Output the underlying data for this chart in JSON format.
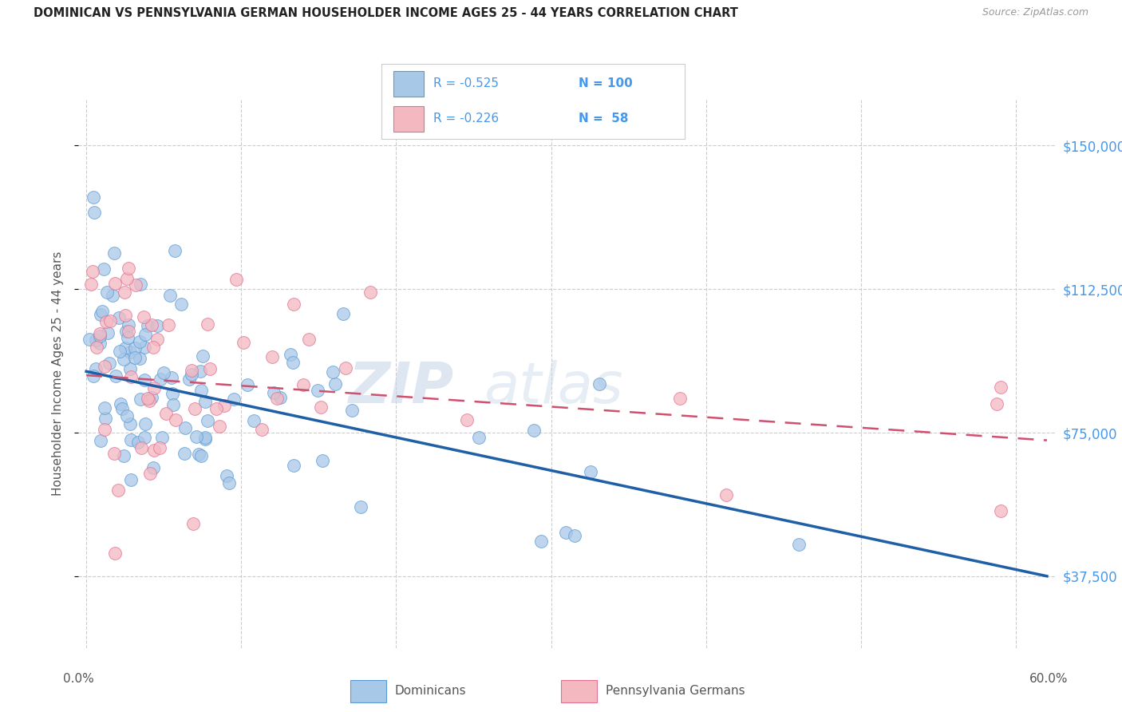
{
  "title": "DOMINICAN VS PENNSYLVANIA GERMAN HOUSEHOLDER INCOME AGES 25 - 44 YEARS CORRELATION CHART",
  "source": "Source: ZipAtlas.com",
  "ylabel": "Householder Income Ages 25 - 44 years",
  "ytick_labels": [
    "$37,500",
    "$75,000",
    "$112,500",
    "$150,000"
  ],
  "ytick_values": [
    37500,
    75000,
    112500,
    150000
  ],
  "ymin": 18750,
  "ymax": 162000,
  "xmin": -0.005,
  "xmax": 0.625,
  "blue_scatter_color": "#a8c8e8",
  "blue_edge_color": "#5b9bd5",
  "pink_scatter_color": "#f4b8c1",
  "pink_edge_color": "#e07090",
  "blue_line_color": "#1f5fa6",
  "pink_line_color": "#d05070",
  "right_label_color": "#4499ee",
  "grid_color": "#cccccc",
  "title_color": "#222222",
  "source_color": "#999999",
  "ylabel_color": "#555555",
  "legend_border_color": "#cccccc",
  "watermark_zip_color": "#c8d8e8",
  "watermark_atlas_color": "#c8d8e8"
}
